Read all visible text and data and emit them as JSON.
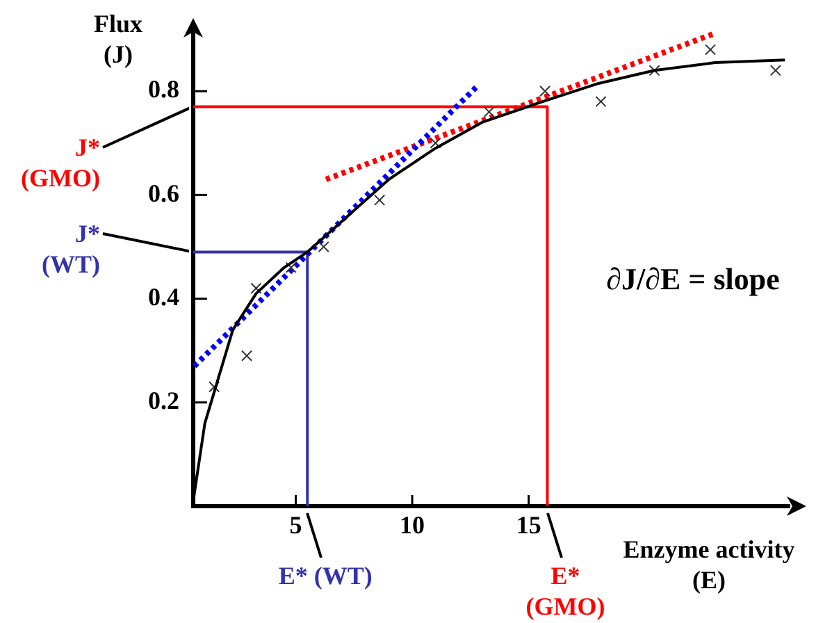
{
  "chart_data": {
    "type": "line",
    "xlabel": "Enzyme activity (E)",
    "ylabel": "Flux (J)",
    "xlim": [
      0.6,
      26.2
    ],
    "ylim": [
      0,
      0.92
    ],
    "xticks": [
      5,
      10,
      15
    ],
    "yticks": [
      0.2,
      0.4,
      0.6,
      0.8
    ],
    "grid": false,
    "legend": false,
    "series": [
      {
        "type": "line",
        "color": "#000000",
        "marker": "none",
        "line_style": "solid",
        "x": [
          0.6,
          0.8,
          1.1,
          1.5,
          2.3,
          3.3,
          4.5,
          5.5,
          7,
          9,
          11,
          13,
          15.6,
          18,
          20.4,
          23,
          26
        ],
        "values": [
          0.01,
          0.07,
          0.16,
          0.22,
          0.34,
          0.41,
          0.46,
          0.49,
          0.55,
          0.63,
          0.69,
          0.74,
          0.78,
          0.815,
          0.84,
          0.855,
          0.86
        ]
      },
      {
        "type": "scatter",
        "color": "#333333",
        "marker": "cross",
        "x": [
          1.5,
          2.9,
          3.3,
          4.8,
          6.2,
          8.6,
          11,
          13.3,
          15.7,
          18.1,
          20.4,
          22.8,
          25.6
        ],
        "values": [
          0.23,
          0.29,
          0.42,
          0.46,
          0.5,
          0.59,
          0.7,
          0.76,
          0.8,
          0.78,
          0.84,
          0.88,
          0.84
        ]
      },
      {
        "type": "line",
        "color": "#0000ff",
        "marker": "none",
        "line_style": "dotted",
        "x": [
          0.65,
          12.8
        ],
        "values": [
          0.27,
          0.81
        ]
      },
      {
        "type": "line",
        "color": "#ff0000",
        "marker": "none",
        "line_style": "dotted",
        "x": [
          6.3,
          22.9
        ],
        "values": [
          0.63,
          0.91
        ]
      },
      {
        "type": "line",
        "color": "#3333aa",
        "marker": "none",
        "line_style": "solid",
        "x": [
          0.6,
          5.5,
          5.5
        ],
        "values": [
          0.49,
          0.49,
          0
        ]
      },
      {
        "type": "line",
        "color": "#ff0000",
        "marker": "none",
        "line_style": "solid",
        "x": [
          0.6,
          15.8,
          15.8
        ],
        "values": [
          0.77,
          0.77,
          0
        ]
      }
    ],
    "annotations": [
      {
        "text": "J* (GMO)",
        "x": 0.6,
        "y": 0.77
      },
      {
        "text": "J* (WT)",
        "x": 0.6,
        "y": 0.49
      },
      {
        "text": "E* (WT)",
        "x": 5.5,
        "y": 0
      },
      {
        "text": "E* (GMO)",
        "x": 15.8,
        "y": 0
      },
      "∂J/∂E = slope"
    ]
  }
}
